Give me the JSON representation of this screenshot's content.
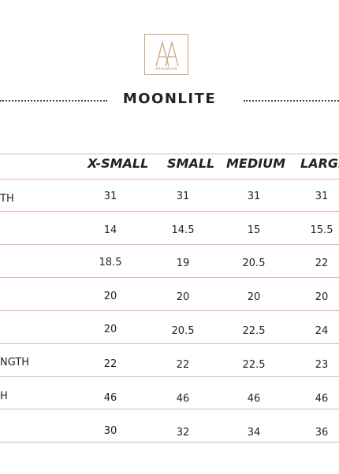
{
  "logo": {
    "monogram": "AA",
    "text": "ARHUMGAD"
  },
  "title": "MOONLITE",
  "columns": [
    "X-SMALL",
    "SMALL",
    "MEDIUM",
    "LARGE"
  ],
  "rows": [
    {
      "label": "TH",
      "values": [
        "31",
        "31",
        "31",
        "31"
      ]
    },
    {
      "label": "",
      "values": [
        "14",
        "14.5",
        "15",
        "15.5"
      ]
    },
    {
      "label": "",
      "values": [
        "18.5",
        "19",
        "20.5",
        "22"
      ]
    },
    {
      "label": "",
      "values": [
        "20",
        "20",
        "20",
        "20"
      ]
    },
    {
      "label": "",
      "values": [
        "20",
        "20.5",
        "22.5",
        "24"
      ]
    },
    {
      "label": "NGTH",
      "values": [
        "22",
        "22",
        "22.5",
        "23"
      ]
    },
    {
      "label": "H",
      "values": [
        "46",
        "46",
        "46",
        "46"
      ]
    },
    {
      "label": "",
      "values": [
        "30",
        "32",
        "34",
        "36"
      ]
    }
  ],
  "colors": {
    "divider": "#e8b4b4",
    "logo": "#c7a57a"
  }
}
